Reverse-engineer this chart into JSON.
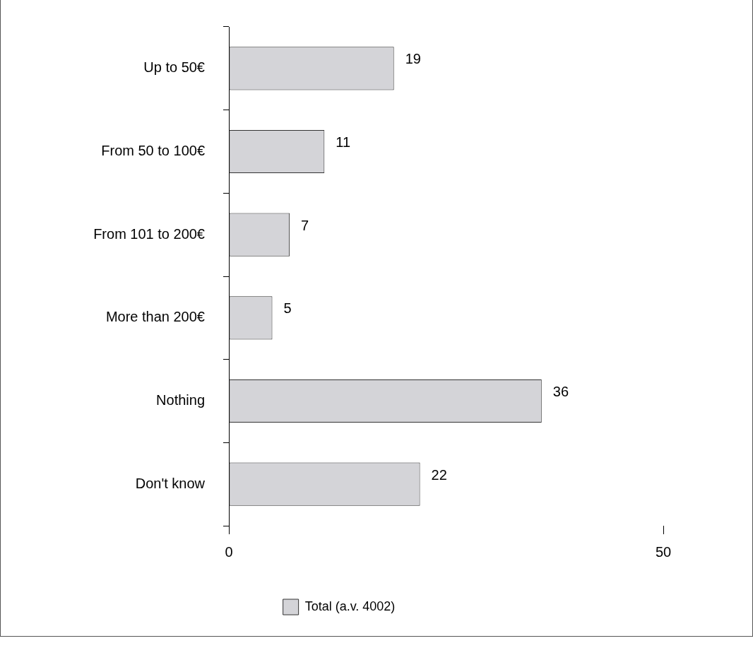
{
  "chart_data": {
    "type": "bar",
    "orientation": "horizontal",
    "categories": [
      "Up to 50€",
      "From 50 to 100€",
      "From 101 to 200€",
      "More than 200€",
      "Nothing",
      "Don't know"
    ],
    "series": [
      {
        "name": "Total (a.v. 4002)",
        "color": "#d4d4d8",
        "values": [
          19,
          11,
          7,
          5,
          36,
          22
        ]
      }
    ],
    "xlim": [
      0,
      50
    ],
    "xticks": [
      0,
      50
    ],
    "grid": false,
    "legend": "bottom",
    "data_labels": true
  }
}
